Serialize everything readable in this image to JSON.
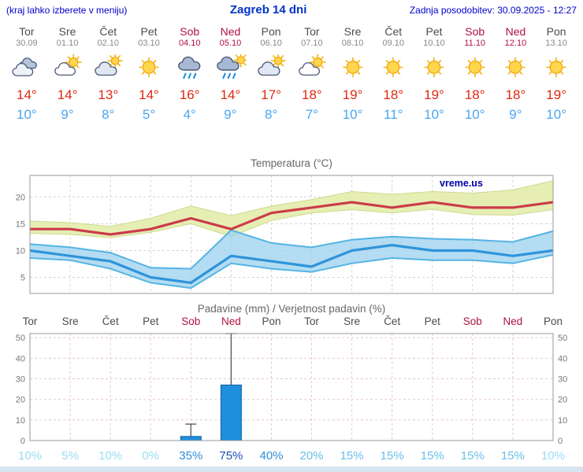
{
  "header": {
    "hint": "(kraj lahko izberete v meniju)",
    "title": "Zagreb 14 dni",
    "updated": "Zadnja posodobitev: 30.09.2025 - 12:27"
  },
  "days": [
    {
      "name": "Tor",
      "date": "30.09",
      "weekend": false,
      "icon": "cloudy",
      "tmax": "14°",
      "tmin": "10°",
      "precip_probability": "10%"
    },
    {
      "name": "Sre",
      "date": "01.10",
      "weekend": false,
      "icon": "partly-cloudy",
      "tmax": "14°",
      "tmin": "9°",
      "precip_probability": "5%"
    },
    {
      "name": "Čet",
      "date": "02.10",
      "weekend": false,
      "icon": "mostly-cloudy",
      "tmax": "13°",
      "tmin": "8°",
      "precip_probability": "10%"
    },
    {
      "name": "Pet",
      "date": "03.10",
      "weekend": false,
      "icon": "sunny",
      "tmax": "14°",
      "tmin": "5°",
      "precip_probability": "0%"
    },
    {
      "name": "Sob",
      "date": "04.10",
      "weekend": true,
      "icon": "rain",
      "tmax": "16°",
      "tmin": "4°",
      "precip_probability": "35%"
    },
    {
      "name": "Ned",
      "date": "05.10",
      "weekend": true,
      "icon": "rain-sun",
      "tmax": "14°",
      "tmin": "9°",
      "precip_probability": "75%"
    },
    {
      "name": "Pon",
      "date": "06.10",
      "weekend": false,
      "icon": "mostly-cloudy",
      "tmax": "17°",
      "tmin": "8°",
      "precip_probability": "40%"
    },
    {
      "name": "Tor",
      "date": "07.10",
      "weekend": false,
      "icon": "partly-cloudy",
      "tmax": "18°",
      "tmin": "7°",
      "precip_probability": "20%"
    },
    {
      "name": "Sre",
      "date": "08.10",
      "weekend": false,
      "icon": "sunny",
      "tmax": "19°",
      "tmin": "10°",
      "precip_probability": "15%"
    },
    {
      "name": "Čet",
      "date": "09.10",
      "weekend": false,
      "icon": "sunny",
      "tmax": "18°",
      "tmin": "11°",
      "precip_probability": "15%"
    },
    {
      "name": "Pet",
      "date": "10.10",
      "weekend": false,
      "icon": "sunny",
      "tmax": "19°",
      "tmin": "10°",
      "precip_probability": "15%"
    },
    {
      "name": "Sob",
      "date": "11.10",
      "weekend": true,
      "icon": "sunny",
      "tmax": "18°",
      "tmin": "10°",
      "precip_probability": "15%"
    },
    {
      "name": "Ned",
      "date": "12.10",
      "weekend": true,
      "icon": "sunny",
      "tmax": "18°",
      "tmin": "9°",
      "precip_probability": "15%"
    },
    {
      "name": "Pon",
      "date": "13.10",
      "weekend": false,
      "icon": "sunny",
      "tmax": "19°",
      "tmin": "10°",
      "precip_probability": "10%"
    }
  ],
  "precip_palette": {
    "low": "#9bdcf2",
    "mid": "#6cc0e8",
    "high": "#2f8fd6",
    "very_high": "#1d4fb0"
  },
  "chart_data": [
    {
      "type": "line",
      "title": "Temperatura (°C)",
      "watermark": "vreme.us",
      "x": [
        "Tor",
        "Sre",
        "Čet",
        "Pet",
        "Sob",
        "Ned",
        "Pon",
        "Tor",
        "Sre",
        "Čet",
        "Pet",
        "Sob",
        "Ned",
        "Pon"
      ],
      "ylim": [
        2,
        24
      ],
      "yticks": [
        5,
        10,
        15,
        20
      ],
      "grid": true,
      "legend": "none",
      "series": [
        {
          "name": "max-temperature",
          "color": "#cc3b49",
          "values": [
            14,
            14,
            13,
            14,
            16,
            14,
            17,
            18,
            19,
            18,
            19,
            18,
            18,
            19
          ]
        },
        {
          "name": "min-temperature",
          "color": "#2e94da",
          "values": [
            10,
            9,
            8,
            5,
            4,
            9,
            8,
            7,
            10,
            11,
            10,
            10,
            9,
            10
          ]
        }
      ],
      "bands": [
        {
          "name": "max-range",
          "fill": "#e4edae",
          "edge": "#cdda8c",
          "upper": [
            15.5,
            15.2,
            14.5,
            16,
            18.3,
            16.5,
            18.3,
            19.5,
            21,
            20.5,
            21,
            20.7,
            21.3,
            23
          ],
          "lower": [
            13.2,
            13,
            12.4,
            13.4,
            15,
            12.6,
            15.6,
            17,
            17.6,
            17,
            17.7,
            16.7,
            16.6,
            17.6
          ]
        },
        {
          "name": "min-range",
          "fill": "#9fd2ee",
          "edge": "#54b4e4",
          "upper": [
            11.2,
            10.6,
            9.6,
            6.8,
            6.6,
            13.8,
            11.4,
            10.6,
            12,
            12.6,
            12.2,
            12,
            11.6,
            13.6
          ],
          "lower": [
            8.6,
            8.2,
            6.6,
            4,
            3,
            7.6,
            6.6,
            6,
            7.6,
            8.6,
            8.2,
            8.2,
            7.6,
            9.2
          ]
        }
      ]
    },
    {
      "type": "bar",
      "title": "Padavine (mm) / Verjetnost padavin (%)",
      "categories": [
        "Tor",
        "Sre",
        "Čet",
        "Pet",
        "Sob",
        "Ned",
        "Pon",
        "Tor",
        "Sre",
        "Čet",
        "Pet",
        "Sob",
        "Ned",
        "Pon"
      ],
      "ylim": [
        0,
        52
      ],
      "yticks": [
        0,
        10,
        20,
        30,
        40,
        50
      ],
      "grid": true,
      "bar_color": "#1d8fdc",
      "bar_edge": "#1060a8",
      "values": [
        0,
        0,
        0,
        0,
        2,
        27,
        0,
        0,
        0,
        0,
        0,
        0,
        0,
        0
      ],
      "whiskers": [
        0,
        0,
        0,
        0,
        8,
        52,
        0,
        0,
        0,
        0,
        0,
        0,
        0,
        0
      ],
      "probabilities": [
        "10%",
        "5%",
        "10%",
        "0%",
        "35%",
        "75%",
        "40%",
        "20%",
        "15%",
        "15%",
        "15%",
        "15%",
        "15%",
        "10%"
      ]
    }
  ]
}
